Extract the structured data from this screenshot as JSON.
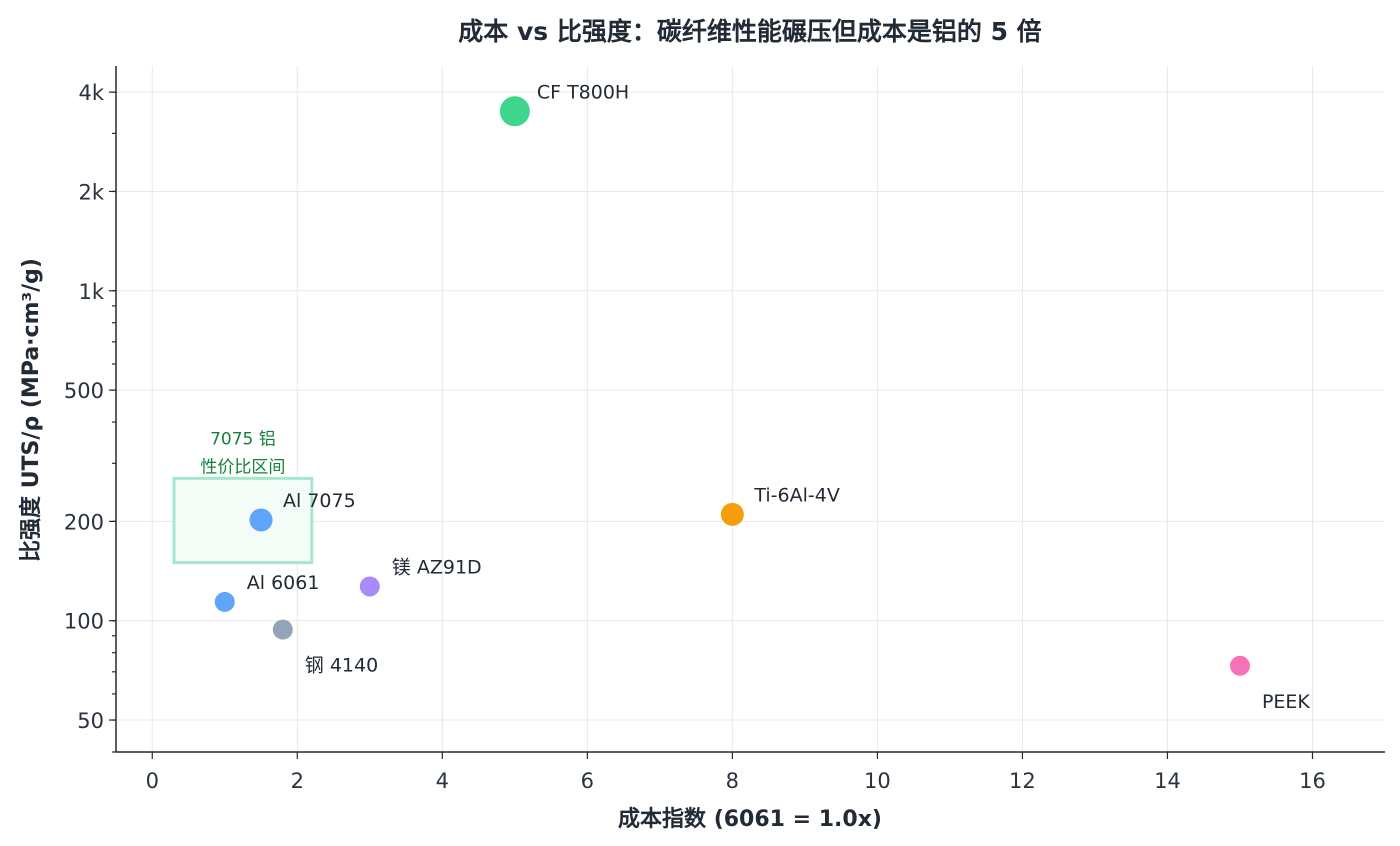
{
  "chart_data": {
    "type": "scatter",
    "title": "成本 vs 比强度：碳纤维性能碾压但成本是铝的 5 倍",
    "xlabel": "成本指数 (6061 = 1.0x)",
    "ylabel": "比强度 UTS/ρ (MPa·cm³/g)",
    "xlim": [
      -0.5,
      17
    ],
    "ylim": [
      40,
      4800
    ],
    "y_scale": "log",
    "grid": true,
    "x_ticks": [
      0,
      2,
      4,
      6,
      8,
      10,
      12,
      14,
      16
    ],
    "x_tick_labels": [
      "0",
      "2",
      "4",
      "6",
      "8",
      "10",
      "12",
      "14",
      "16"
    ],
    "y_ticks": [
      50,
      100,
      200,
      500,
      1000,
      2000,
      4000
    ],
    "y_tick_labels": [
      "50",
      "100",
      "200",
      "500",
      "1k",
      "2k",
      "4k"
    ],
    "points": [
      {
        "label": "CF T800H",
        "x": 5.0,
        "y": 3500,
        "color": "#3dd68c",
        "size": "large",
        "label_pos": "upper-right"
      },
      {
        "label": "Ti-6Al-4V",
        "x": 8.0,
        "y": 210,
        "color": "#f59e0b",
        "size": "medium",
        "label_pos": "upper-right"
      },
      {
        "label": "Al 7075",
        "x": 1.5,
        "y": 202,
        "color": "#60a5fa",
        "size": "medium",
        "label_pos": "upper-right"
      },
      {
        "label": "镁 AZ91D",
        "x": 3.0,
        "y": 127,
        "color": "#a78bfa",
        "size": "small",
        "label_pos": "upper-right"
      },
      {
        "label": "Al 6061",
        "x": 1.0,
        "y": 114,
        "color": "#60a5fa",
        "size": "small",
        "label_pos": "upper-right"
      },
      {
        "label": "钢 4140",
        "x": 1.8,
        "y": 94,
        "color": "#94a3b8",
        "size": "small",
        "label_pos": "lower-right"
      },
      {
        "label": "PEEK",
        "x": 15.0,
        "y": 73,
        "color": "#f472b6",
        "size": "small",
        "label_pos": "lower-right"
      }
    ],
    "annotations": [
      {
        "type": "region",
        "lines": [
          "7075 铝",
          "性价比区间"
        ],
        "x_range": [
          0.3,
          2.2
        ],
        "y_range": [
          150,
          270
        ],
        "color": "#15803d",
        "border_color": "#a7e8cc"
      }
    ]
  }
}
